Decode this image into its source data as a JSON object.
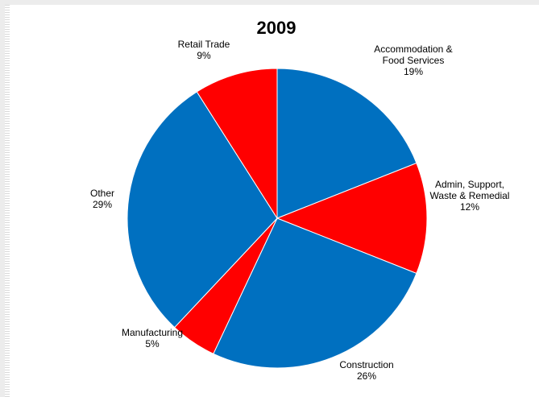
{
  "chart_data": {
    "type": "pie",
    "title": "2009",
    "legend": "none",
    "slices": [
      {
        "label": "Accommodation & Food Services",
        "label_lines": [
          "Accommodation &",
          "Food Services"
        ],
        "value": 19,
        "value_label": "19%",
        "color": "#0070c0"
      },
      {
        "label": "Admin, Support, Waste & Remedial",
        "label_lines": [
          "Admin, Support,",
          "Waste & Remedial"
        ],
        "value": 12,
        "value_label": "12%",
        "color": "#ff0000"
      },
      {
        "label": "Construction",
        "label_lines": [
          "Construction"
        ],
        "value": 26,
        "value_label": "26%",
        "color": "#0070c0"
      },
      {
        "label": "Manufacturing",
        "label_lines": [
          "Manufacturing"
        ],
        "value": 5,
        "value_label": "5%",
        "color": "#ff0000"
      },
      {
        "label": "Other",
        "label_lines": [
          "Other"
        ],
        "value": 29,
        "value_label": "29%",
        "color": "#0070c0"
      },
      {
        "label": "Retail Trade",
        "label_lines": [
          "Retail Trade"
        ],
        "value": 9,
        "value_label": "9%",
        "color": "#ff0000"
      }
    ]
  }
}
